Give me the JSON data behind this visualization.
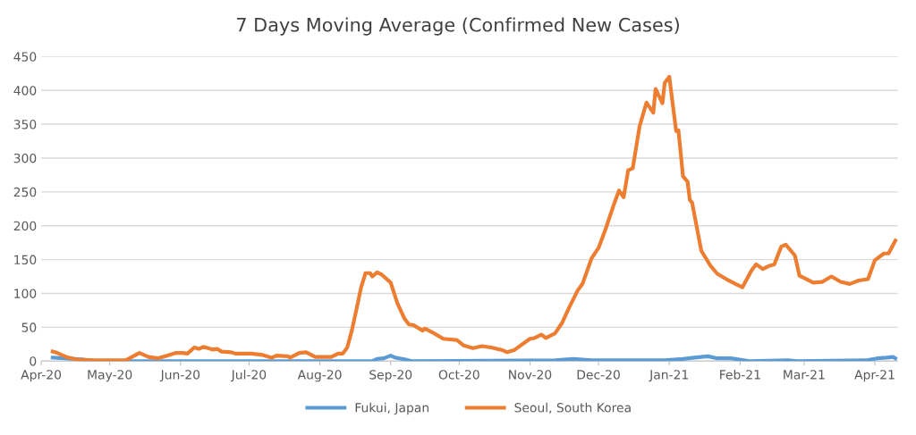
{
  "chart_data": {
    "type": "line",
    "title": "7 Days Moving Average (Confirmed New Cases)",
    "xlim": [
      "2020-04-01",
      "2021-04-11"
    ],
    "xticks": [
      {
        "value": "2020-04-01",
        "label": "Apr-20"
      },
      {
        "value": "2020-05-01",
        "label": "May-20"
      },
      {
        "value": "2020-06-01",
        "label": "Jun-20"
      },
      {
        "value": "2020-07-01",
        "label": "Jul-20"
      },
      {
        "value": "2020-08-01",
        "label": "Aug-20"
      },
      {
        "value": "2020-09-01",
        "label": "Sep-20"
      },
      {
        "value": "2020-10-01",
        "label": "Oct-20"
      },
      {
        "value": "2020-11-01",
        "label": "Nov-20"
      },
      {
        "value": "2020-12-01",
        "label": "Dec-20"
      },
      {
        "value": "2021-01-01",
        "label": "Jan-21"
      },
      {
        "value": "2021-02-01",
        "label": "Feb-21"
      },
      {
        "value": "2021-03-01",
        "label": "Mar-21"
      },
      {
        "value": "2021-04-01",
        "label": "Apr-21"
      }
    ],
    "ylim": [
      0,
      450
    ],
    "yticks": [
      0,
      50,
      100,
      150,
      200,
      250,
      300,
      350,
      400,
      450
    ],
    "grid": "y",
    "legend": "bottom",
    "marker": "none",
    "line_style": "solid",
    "series": [
      {
        "name": "Fukui, Japan",
        "color": "#5b9bd5",
        "x": [
          "2020-04-06",
          "2020-04-20",
          "2020-04-25",
          "2020-08-24",
          "2020-08-26",
          "2020-08-29",
          "2020-09-01",
          "2020-09-03",
          "2020-09-08",
          "2020-09-10",
          "2020-11-12",
          "2020-11-20",
          "2020-11-28",
          "2020-12-30",
          "2021-01-07",
          "2021-01-12",
          "2021-01-18",
          "2021-01-22",
          "2021-01-28",
          "2021-02-05",
          "2021-02-22",
          "2021-02-26",
          "2021-03-28",
          "2021-04-02",
          "2021-04-06",
          "2021-04-09",
          "2021-04-10"
        ],
        "values": [
          5,
          2,
          0,
          0,
          3,
          4,
          8,
          5,
          2,
          0,
          1,
          3,
          1,
          1,
          3,
          5,
          7,
          4,
          4,
          0,
          1,
          0,
          1,
          4,
          5,
          6,
          4
        ]
      },
      {
        "name": "Seoul, South Korea",
        "color": "#ed7d31",
        "x": [
          "2020-04-06",
          "2020-04-08",
          "2020-04-12",
          "2020-04-17",
          "2020-04-24",
          "2020-05-08",
          "2020-05-14",
          "2020-05-18",
          "2020-05-22",
          "2020-05-27",
          "2020-05-30",
          "2020-06-02",
          "2020-06-04",
          "2020-06-07",
          "2020-06-09",
          "2020-06-11",
          "2020-06-15",
          "2020-06-17",
          "2020-06-19",
          "2020-06-23",
          "2020-06-25",
          "2020-07-02",
          "2020-07-07",
          "2020-07-11",
          "2020-07-13",
          "2020-07-18",
          "2020-07-19",
          "2020-07-23",
          "2020-07-26",
          "2020-07-30",
          "2020-08-06",
          "2020-08-09",
          "2020-08-11",
          "2020-08-13",
          "2020-08-15",
          "2020-08-17",
          "2020-08-19",
          "2020-08-21",
          "2020-08-23",
          "2020-08-24",
          "2020-08-26",
          "2020-08-28",
          "2020-09-01",
          "2020-09-04",
          "2020-09-07",
          "2020-09-09",
          "2020-09-11",
          "2020-09-15",
          "2020-09-16",
          "2020-09-20",
          "2020-09-24",
          "2020-09-30",
          "2020-10-03",
          "2020-10-07",
          "2020-10-11",
          "2020-10-15",
          "2020-10-20",
          "2020-10-22",
          "2020-10-25",
          "2020-11-01",
          "2020-11-03",
          "2020-11-06",
          "2020-11-08",
          "2020-11-12",
          "2020-11-15",
          "2020-11-18",
          "2020-11-22",
          "2020-11-24",
          "2020-11-28",
          "2020-12-01",
          "2020-12-04",
          "2020-12-08",
          "2020-12-10",
          "2020-12-12",
          "2020-12-14",
          "2020-12-16",
          "2020-12-19",
          "2020-12-22",
          "2020-12-25",
          "2020-12-26",
          "2020-12-29",
          "2020-12-30",
          "2021-01-01",
          "2021-01-04",
          "2021-01-05",
          "2021-01-07",
          "2021-01-09",
          "2021-01-10",
          "2021-01-11",
          "2021-01-15",
          "2021-01-19",
          "2021-01-22",
          "2021-01-26",
          "2021-01-30",
          "2021-02-02",
          "2021-02-06",
          "2021-02-08",
          "2021-02-11",
          "2021-02-14",
          "2021-02-16",
          "2021-02-19",
          "2021-02-21",
          "2021-02-25",
          "2021-02-27",
          "2021-03-01",
          "2021-03-05",
          "2021-03-09",
          "2021-03-13",
          "2021-03-17",
          "2021-03-21",
          "2021-03-25",
          "2021-03-29",
          "2021-04-01",
          "2021-04-05",
          "2021-04-07",
          "2021-04-10"
        ],
        "values": [
          14,
          12,
          6,
          2,
          1,
          1,
          12,
          6,
          4,
          9,
          12,
          12,
          11,
          20,
          18,
          21,
          17,
          18,
          14,
          13,
          11,
          11,
          9,
          5,
          8,
          7,
          5,
          12,
          13,
          6,
          6,
          11,
          11,
          20,
          45,
          76,
          108,
          130,
          130,
          125,
          131,
          128,
          116,
          85,
          63,
          54,
          53,
          45,
          48,
          41,
          33,
          31,
          23,
          19,
          22,
          20,
          16,
          13,
          16,
          33,
          34,
          39,
          34,
          41,
          56,
          78,
          105,
          114,
          152,
          167,
          194,
          234,
          252,
          242,
          282,
          285,
          347,
          382,
          367,
          402,
          381,
          411,
          420,
          340,
          341,
          273,
          265,
          238,
          234,
          163,
          141,
          129,
          121,
          114,
          109,
          134,
          143,
          136,
          141,
          143,
          169,
          172,
          156,
          126,
          123,
          116,
          117,
          125,
          117,
          114,
          119,
          121,
          149,
          159,
          159,
          178
        ]
      }
    ]
  }
}
